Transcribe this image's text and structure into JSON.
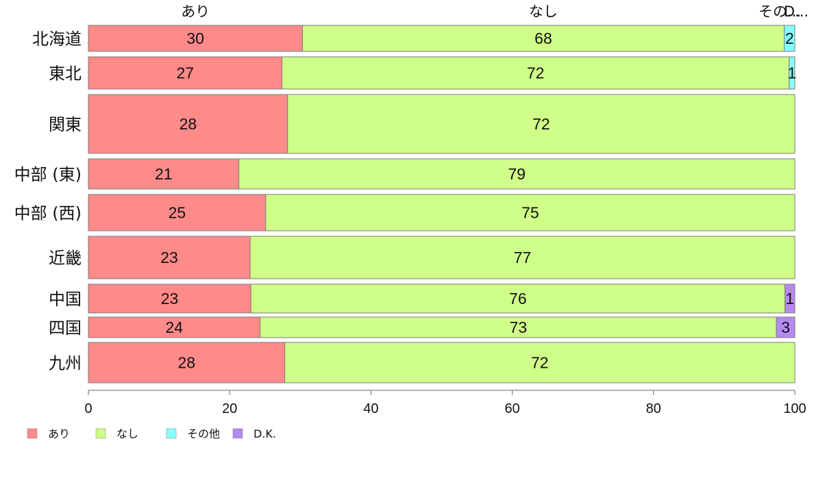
{
  "chart_data": {
    "type": "bar",
    "orientation": "horizontal",
    "stacked": true,
    "categories": [
      "北海道",
      "東北",
      "関東",
      "中部 (東)",
      "中部 (西)",
      "近畿",
      "中国",
      "四国",
      "九州"
    ],
    "series": [
      {
        "name": "あり",
        "color": "#ff8a8a",
        "values": [
          30,
          27,
          28,
          21,
          25,
          23,
          23,
          24,
          28
        ],
        "display": [
          30.3,
          27.4,
          28.2,
          21.3,
          25.1,
          22.9,
          23.0,
          24.3,
          27.8
        ]
      },
      {
        "name": "なし",
        "color": "#cfff88",
        "values": [
          68,
          72,
          72,
          79,
          75,
          77,
          76,
          73,
          72
        ],
        "display": [
          68.2,
          71.8,
          71.8,
          78.7,
          74.9,
          77.1,
          75.6,
          73.1,
          72.2
        ]
      },
      {
        "name": "その他",
        "color": "#88ffff",
        "values": [
          2,
          1,
          0,
          0,
          0,
          0,
          0,
          0,
          0
        ],
        "display": [
          1.5,
          0.8,
          0,
          0,
          0,
          0,
          0,
          0,
          0
        ]
      },
      {
        "name": "D.K.",
        "color": "#b58af0",
        "values": [
          0,
          0,
          0,
          0,
          0,
          0,
          1,
          3,
          0
        ],
        "display": [
          0,
          0,
          0,
          0,
          0,
          0,
          1.4,
          2.6,
          0
        ]
      }
    ],
    "top_labels": [
      "あり",
      "なし",
      "その...",
      "D..."
    ],
    "xlim": [
      0,
      100
    ],
    "x_ticks": [
      "0",
      "20",
      "40",
      "60",
      "80",
      "100"
    ],
    "legend_position": "bottom-left",
    "grid": false
  }
}
